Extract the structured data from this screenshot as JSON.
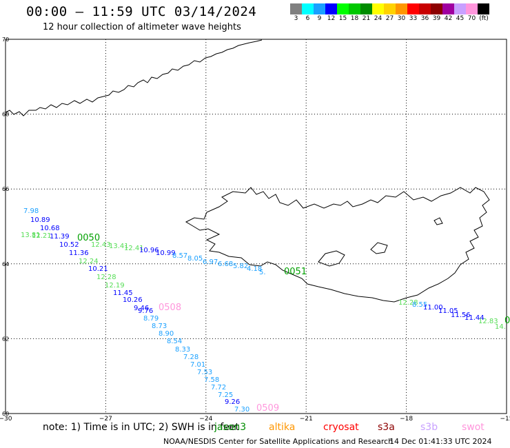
{
  "header": {
    "title": "00:00 – 11:59 UTC 03/14/2024",
    "subtitle": "12 hour collection of altimeter wave heights"
  },
  "colorbar": {
    "units_label": "(ft)",
    "segments": [
      {
        "label": "3",
        "color": "#808080"
      },
      {
        "label": "6",
        "color": "#00ffff"
      },
      {
        "label": "9",
        "color": "#1aa0ff"
      },
      {
        "label": "12",
        "color": "#0000ff"
      },
      {
        "label": "15",
        "color": "#00ff00"
      },
      {
        "label": "18",
        "color": "#00c800"
      },
      {
        "label": "21",
        "color": "#008c00"
      },
      {
        "label": "24",
        "color": "#ffff00"
      },
      {
        "label": "27",
        "color": "#ffd200"
      },
      {
        "label": "30",
        "color": "#ff9600"
      },
      {
        "label": "33",
        "color": "#ff0000"
      },
      {
        "label": "36",
        "color": "#c80000"
      },
      {
        "label": "39",
        "color": "#8c0000"
      },
      {
        "label": "42",
        "color": "#a000a0"
      },
      {
        "label": "45",
        "color": "#c8a0ff"
      },
      {
        "label": "70",
        "color": "#ff96dc"
      },
      {
        "label": "",
        "color": "#000000"
      }
    ]
  },
  "map": {
    "lat_labels": [
      "70",
      "68",
      "66",
      "64",
      "62",
      "60"
    ],
    "lon_labels": [
      "−30",
      "−27",
      "−24",
      "−21",
      "−18",
      "−15"
    ],
    "lat_range": [
      60,
      70
    ],
    "lon_range": [
      -30,
      -15
    ],
    "tracks": [
      {
        "time_label": "0050",
        "time_color": "#00a000",
        "readings": [
          {
            "value": "7.98",
            "color": "#1aa0ff"
          },
          {
            "value": "10.89",
            "color": "#0000ff"
          },
          {
            "value": "10.68",
            "color": "#0000ff"
          },
          {
            "value": "13.81",
            "color": "#55dd55"
          },
          {
            "value": "12.21",
            "color": "#55dd55"
          },
          {
            "value": "11.39",
            "color": "#0000ff"
          },
          {
            "value": "10.52",
            "color": "#0000ff"
          },
          {
            "value": "11.36",
            "color": "#0000ff"
          },
          {
            "value": "12.24",
            "color": "#55dd55"
          },
          {
            "value": "10.21",
            "color": "#0000ff"
          },
          {
            "value": "12.28",
            "color": "#55dd55"
          },
          {
            "value": "12.19",
            "color": "#55dd55"
          },
          {
            "value": "11.45",
            "color": "#0000ff"
          },
          {
            "value": "10.26",
            "color": "#0000ff"
          },
          {
            "value": "9.46",
            "color": "#0000ff"
          },
          {
            "value": "9.76",
            "color": "#0000ff"
          },
          {
            "value": "8.79",
            "color": "#1aa0ff"
          },
          {
            "value": "8.73",
            "color": "#1aa0ff"
          },
          {
            "value": "8.90",
            "color": "#1aa0ff"
          },
          {
            "value": "8.54",
            "color": "#1aa0ff"
          },
          {
            "value": "8.33",
            "color": "#1aa0ff"
          },
          {
            "value": "7.28",
            "color": "#1aa0ff"
          },
          {
            "value": "7.01",
            "color": "#1aa0ff"
          },
          {
            "value": "7.53",
            "color": "#1aa0ff"
          },
          {
            "value": "7.58",
            "color": "#1aa0ff"
          },
          {
            "value": "7.72",
            "color": "#1aa0ff"
          },
          {
            "value": "7.25",
            "color": "#1aa0ff"
          },
          {
            "value": "9.26",
            "color": "#0000ff"
          },
          {
            "value": "7.30",
            "color": "#1aa0ff"
          }
        ]
      },
      {
        "time_label": "0051",
        "time_color": "#00a000",
        "readings": [
          {
            "value": "12.43",
            "color": "#55dd55"
          },
          {
            "value": "13.41",
            "color": "#55dd55"
          },
          {
            "value": "12.41",
            "color": "#55dd55"
          },
          {
            "value": "10.96",
            "color": "#0000ff"
          },
          {
            "value": "10.99",
            "color": "#0000ff"
          },
          {
            "value": "8.57",
            "color": "#1aa0ff"
          },
          {
            "value": "8.05",
            "color": "#1aa0ff"
          },
          {
            "value": "6.97",
            "color": "#1aa0ff"
          },
          {
            "value": "6.68",
            "color": "#1aa0ff"
          },
          {
            "value": "5.82",
            "color": "#1aa0ff"
          },
          {
            "value": "4.18",
            "color": "#1aa0ff"
          },
          {
            "value": "5.",
            "color": "#1aa0ff"
          }
        ]
      },
      {
        "time_label": "0",
        "time_color": "#00a000",
        "readings": [
          {
            "value": "12.28",
            "color": "#55dd55"
          },
          {
            "value": "8.55",
            "color": "#1aa0ff"
          },
          {
            "value": "11.00",
            "color": "#0000ff"
          },
          {
            "value": "11.05",
            "color": "#0000ff"
          },
          {
            "value": "11.56",
            "color": "#0000ff"
          },
          {
            "value": "11.44",
            "color": "#0000ff"
          },
          {
            "value": "12.83",
            "color": "#55dd55"
          },
          {
            "value": "14.",
            "color": "#55dd55"
          }
        ]
      },
      {
        "time_label": "0508",
        "time_color": "#ff96dc",
        "readings": []
      },
      {
        "time_label": "0509",
        "time_color": "#ff96dc",
        "readings": []
      }
    ]
  },
  "footer": {
    "note": "note:  1) Time is in UTC;  2) SWH is in feet",
    "satellites": [
      {
        "name": "jason3",
        "color": "#008c00"
      },
      {
        "name": "altika",
        "color": "#ff9600"
      },
      {
        "name": "cryosat",
        "color": "#ff0000"
      },
      {
        "name": "s3a",
        "color": "#8c0000"
      },
      {
        "name": "s3b",
        "color": "#c8a0ff"
      },
      {
        "name": "swot",
        "color": "#ff96dc"
      }
    ],
    "credit": "NOAA/NESDIS Center for Satellite Applications and Research",
    "timestamp": "14 Dec 01:41:33 UTC 2024"
  }
}
